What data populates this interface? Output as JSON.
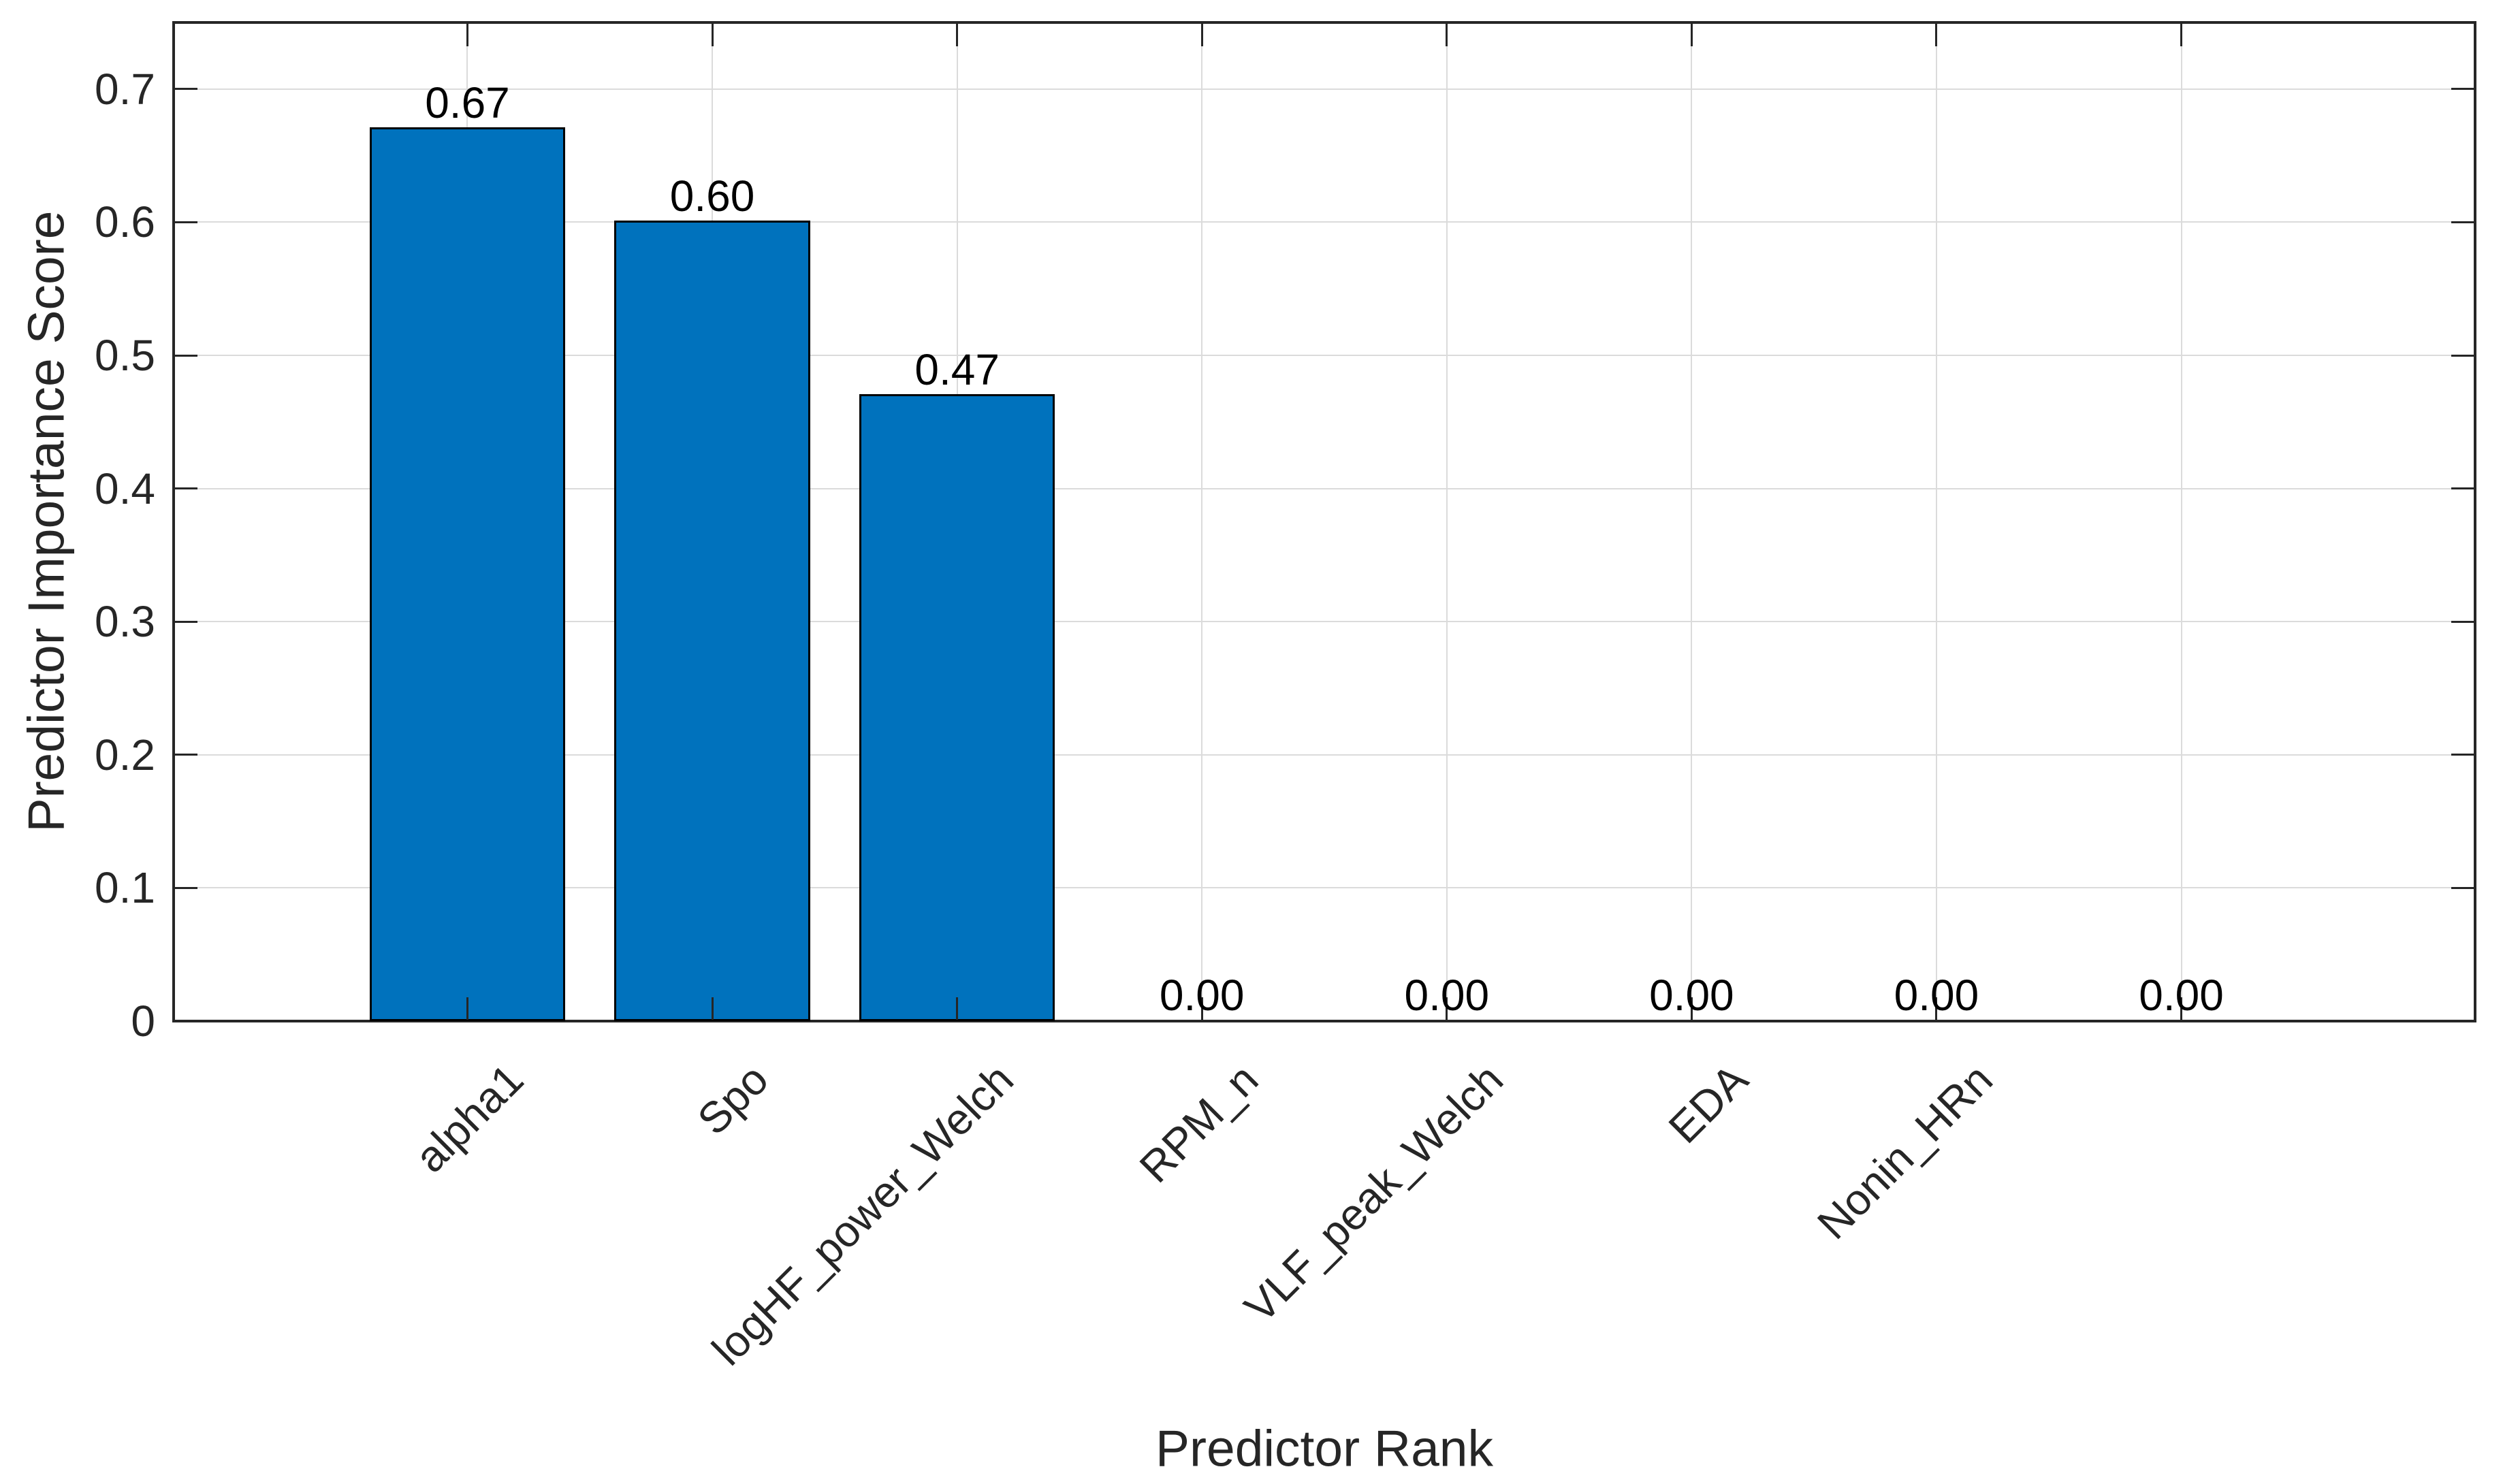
{
  "figure": {
    "background_color": "#FFFFFF"
  },
  "chart_data": {
    "type": "bar",
    "title": "",
    "xlabel": "Predictor Rank",
    "ylabel": "Predictor Importance Score",
    "categories": [
      "alpha1",
      "Spo",
      "logHF_power_Welch",
      "RPM_n",
      "VLF_peak_Welch",
      "EDA",
      "Nonin_HRn",
      ""
    ],
    "values": [
      0.67,
      0.6,
      0.47,
      0,
      0,
      0,
      0,
      0
    ],
    "bar_value_labels": [
      "0.67",
      "0.60",
      "0.47",
      "0.00",
      "0.00",
      "0.00",
      "0.00",
      "0.00"
    ],
    "ylim": [
      0,
      0.75
    ],
    "yticks": [
      0,
      0.1,
      0.2,
      0.3,
      0.4,
      0.5,
      0.6,
      0.7
    ],
    "ytick_labels": [
      "0",
      "0.1",
      "0.2",
      "0.3",
      "0.4",
      "0.5",
      "0.6",
      "0.7"
    ],
    "xlim_categories": [
      -0.2,
      9.2
    ],
    "xtick_rotation_deg": 45,
    "bar_width_fraction": 0.8,
    "grid": true,
    "legend": null,
    "bar_color": "#0072BD",
    "bar_edge_color": "#000000",
    "axis_color": "#262626",
    "grid_color": "#DBDBDB",
    "value_label_color": "#000000"
  }
}
